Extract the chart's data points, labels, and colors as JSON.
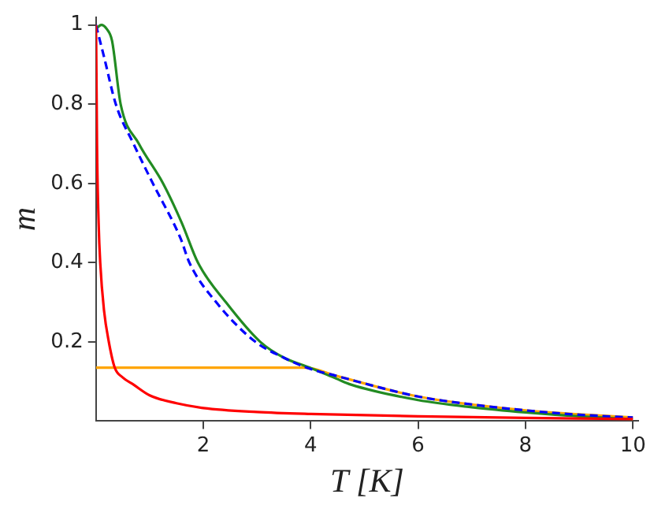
{
  "chart_data": {
    "type": "line",
    "xlabel": "T [K]",
    "ylabel": "m",
    "xlim": [
      0,
      10.1
    ],
    "ylim": [
      0,
      1.02
    ],
    "xticks": [
      2,
      4,
      6,
      8,
      10
    ],
    "yticks": [
      0.2,
      0.4,
      0.6,
      0.8,
      1
    ],
    "grid": false,
    "legend": false,
    "marker": "none",
    "series": [
      {
        "color": "#ffa500",
        "line_style": "solid",
        "x": [
          0,
          3.9,
          4.48,
          6,
          8,
          10
        ],
        "values": [
          0.135,
          0.135,
          0.114,
          0.062,
          0.027,
          0.009
        ]
      },
      {
        "color": "#228b22",
        "line_style": "solid",
        "x": [
          0,
          0.1,
          0.2,
          0.3,
          0.46,
          0.8,
          1.25,
          1.6,
          1.9,
          2.42,
          3.06,
          3.5,
          3.98,
          4.48,
          4.75,
          6,
          7,
          8,
          9,
          10
        ],
        "values": [
          0.99,
          1.0,
          0.99,
          0.96,
          0.8,
          0.7,
          0.6,
          0.5,
          0.4,
          0.3,
          0.2,
          0.16,
          0.135,
          0.107,
          0.092,
          0.053,
          0.035,
          0.022,
          0.012,
          0.005
        ]
      },
      {
        "color": "#0000ff",
        "line_style": "dashed",
        "x": [
          0,
          0.15,
          0.37,
          0.7,
          1.06,
          1.58,
          1.74,
          2.24,
          2.97,
          3.5,
          3.92,
          4.48,
          6,
          7,
          8,
          9,
          10
        ],
        "values": [
          1.0,
          0.92,
          0.8,
          0.7,
          0.6,
          0.46,
          0.4,
          0.3,
          0.2,
          0.16,
          0.135,
          0.114,
          0.062,
          0.042,
          0.027,
          0.016,
          0.009
        ]
      },
      {
        "color": "#ff0000",
        "line_style": "solid",
        "x": [
          0,
          0.005,
          0.02,
          0.05,
          0.08,
          0.15,
          0.24,
          0.35,
          0.5,
          0.7,
          1,
          1.5,
          2,
          3,
          4,
          6,
          8,
          10
        ],
        "values": [
          1.0,
          0.95,
          0.7,
          0.5,
          0.4,
          0.28,
          0.2,
          0.135,
          0.11,
          0.092,
          0.065,
          0.045,
          0.033,
          0.023,
          0.018,
          0.012,
          0.008,
          0.005
        ]
      }
    ]
  }
}
